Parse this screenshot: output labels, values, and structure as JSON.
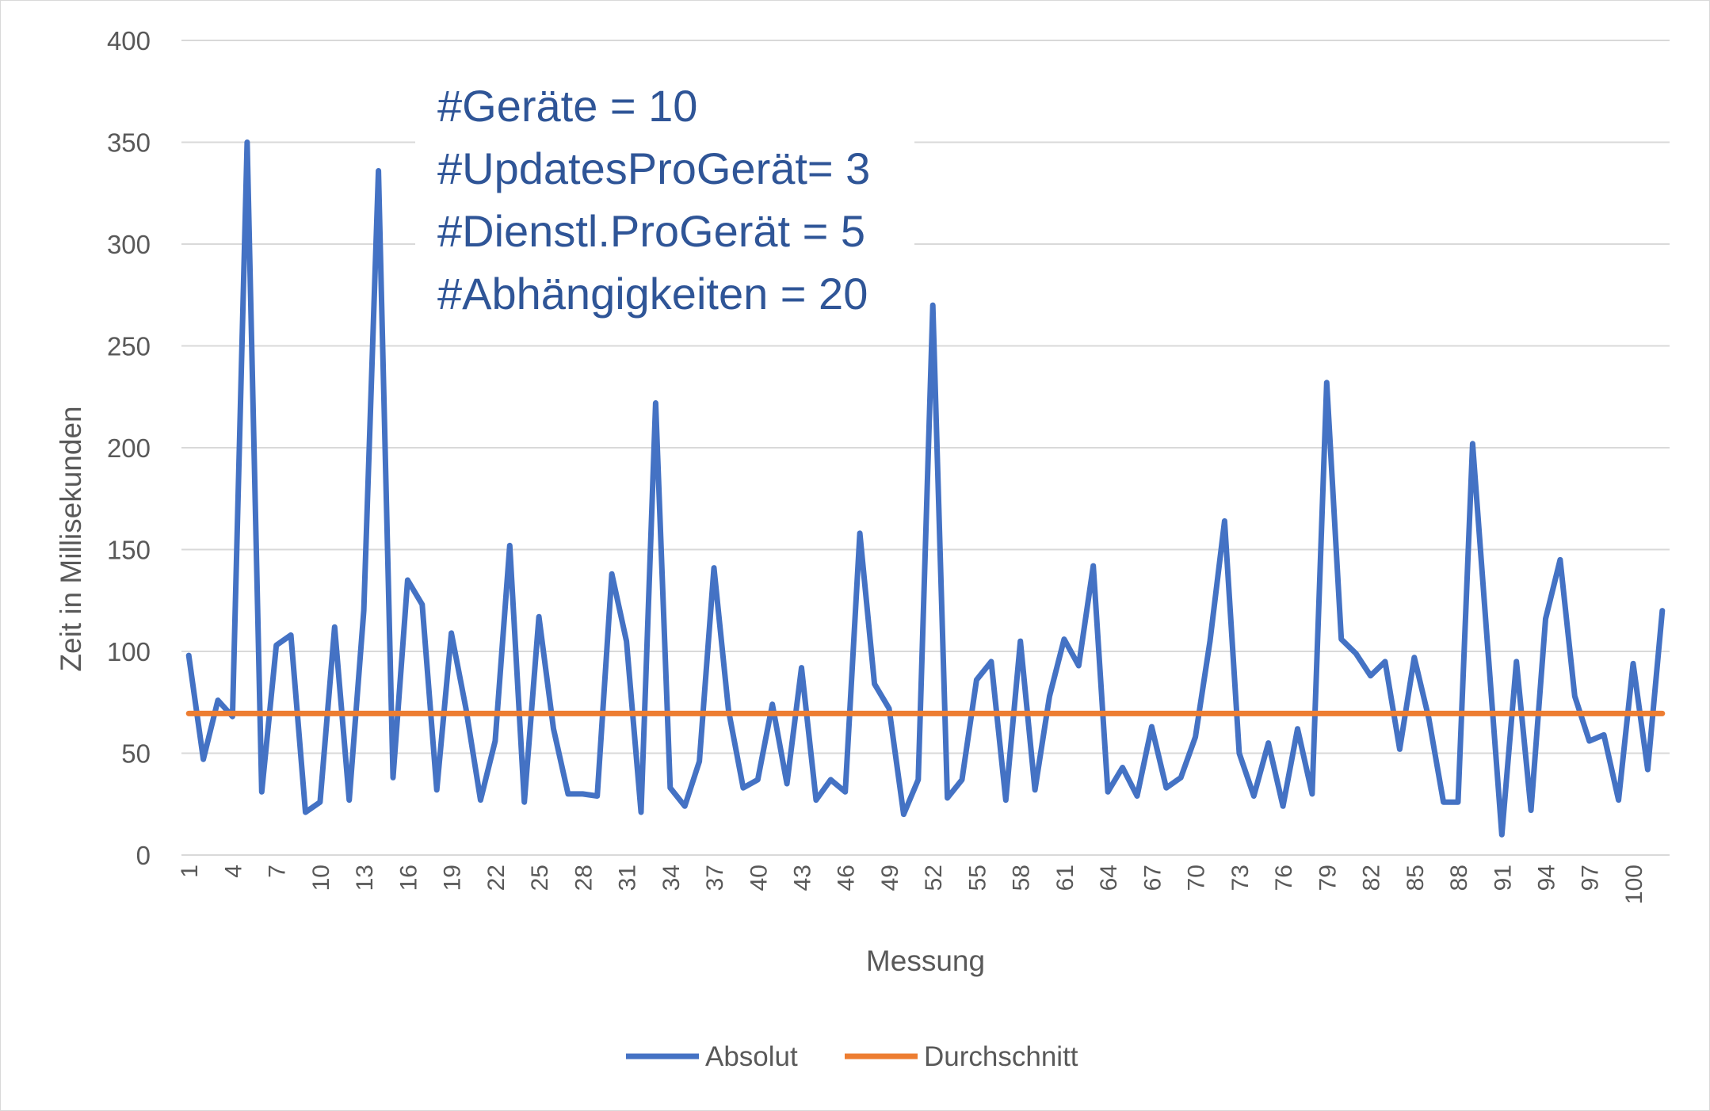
{
  "chart_data": {
    "type": "line",
    "ylabel": "Zeit in Millisekunden",
    "xlabel": "Messung",
    "ylim": [
      0,
      400
    ],
    "y_ticks": [
      0,
      50,
      100,
      150,
      200,
      250,
      300,
      350,
      400
    ],
    "x_tick_labels": [
      "1",
      "4",
      "7",
      "10",
      "13",
      "16",
      "19",
      "22",
      "25",
      "28",
      "31",
      "34",
      "37",
      "40",
      "43",
      "46",
      "49",
      "52",
      "55",
      "58",
      "61",
      "64",
      "67",
      "70",
      "73",
      "76",
      "79",
      "82",
      "85",
      "88",
      "91",
      "94",
      "97",
      "100"
    ],
    "x_count": 102,
    "grid": "horizontal",
    "legend_position": "bottom",
    "annotations": [
      "#Geräte = 10",
      "#UpdatesProGerät= 3",
      "#Dienstl.ProGerät = 5",
      "#Abhängigkeiten = 20"
    ],
    "series": [
      {
        "name": "Absolut",
        "color": "#4472c4",
        "values": [
          98,
          47,
          76,
          68,
          350,
          31,
          103,
          108,
          21,
          26,
          112,
          27,
          120,
          336,
          38,
          135,
          123,
          32,
          109,
          72,
          27,
          56,
          152,
          26,
          117,
          62,
          30,
          30,
          29,
          138,
          105,
          21,
          222,
          33,
          24,
          46,
          141,
          71,
          33,
          37,
          74,
          35,
          92,
          27,
          37,
          31,
          158,
          84,
          72,
          20,
          37,
          270,
          28,
          37,
          86,
          95,
          27,
          105,
          32,
          78,
          106,
          93,
          142,
          31,
          43,
          29,
          63,
          33,
          38,
          58,
          105,
          164,
          50,
          29,
          55,
          24,
          62,
          30,
          232,
          106,
          99,
          88,
          95,
          52,
          97,
          67,
          26,
          26,
          202,
          105,
          10,
          95,
          22,
          116,
          145,
          78,
          56,
          59,
          27,
          94,
          42,
          120
        ]
      },
      {
        "name": "Durchschnitt",
        "color": "#ed7d31",
        "values": [
          69.5
        ]
      }
    ]
  }
}
